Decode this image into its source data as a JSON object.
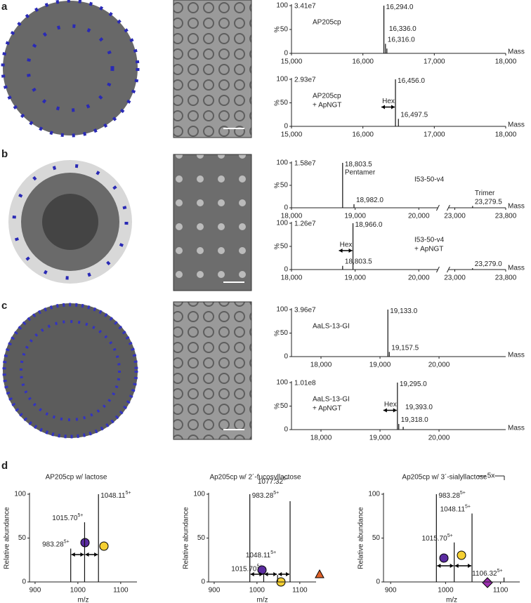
{
  "panel_labels": [
    "a",
    "b",
    "c",
    "d"
  ],
  "chart_data": [
    {
      "type": "spectrum",
      "intensity": "3.41e7",
      "label_lines": [
        "AP205cp"
      ],
      "x": [
        16294.0,
        16316.0,
        16336.0
      ],
      "x_labels": [
        "16,294.0",
        "16,316.0",
        "16,336.0"
      ],
      "values": [
        100,
        20,
        10
      ],
      "xlim": [
        15000,
        18000
      ],
      "xticks": [
        {
          "value": 15000,
          "label": "15,000"
        },
        {
          "value": 16000,
          "label": "16,000"
        },
        {
          "value": 17000,
          "label": "17,000"
        },
        {
          "value": 18000,
          "label": "18,000"
        }
      ],
      "ylim": [
        0,
        100
      ],
      "yticks": [
        0,
        50,
        100
      ],
      "ylabel": "%",
      "xlabel": "Mass",
      "color": "#111111"
    },
    {
      "type": "spectrum",
      "intensity": "2.93e7",
      "label_lines": [
        "AP205cp",
        "+ ApNGT"
      ],
      "annotation": "Hex",
      "x": [
        16456.0,
        16497.5
      ],
      "x_labels": [
        "16,456.0",
        "16,497.5"
      ],
      "values": [
        100,
        16
      ],
      "xlim": [
        15000,
        18000
      ],
      "xticks": [
        {
          "value": 15000,
          "label": "15,000"
        },
        {
          "value": 16000,
          "label": "16,000"
        },
        {
          "value": 17000,
          "label": "17,000"
        },
        {
          "value": 18000,
          "label": "18,000"
        }
      ],
      "ylim": [
        0,
        100
      ],
      "yticks": [
        0,
        50,
        100
      ],
      "ylabel": "%",
      "xlabel": "Mass",
      "color": "#111111"
    },
    {
      "type": "spectrum",
      "intensity": "1.58e7",
      "label_lines": [
        "I53-50-v4"
      ],
      "x": [
        18803.5,
        18982.0,
        23279.5
      ],
      "x_labels": [
        "18,803.5",
        "18,982.0",
        "23,279.5"
      ],
      "peak_names": [
        "Pentamer",
        null,
        "Trimer"
      ],
      "values": [
        100,
        8,
        4
      ],
      "xlim": [
        18000,
        23800
      ],
      "xbreak": [
        20300,
        22900
      ],
      "xticks": [
        {
          "value": 18000,
          "label": "18,000"
        },
        {
          "value": 19000,
          "label": "19,000"
        },
        {
          "value": 20000,
          "label": "20,000"
        },
        {
          "value": 23000,
          "label": "23,000"
        },
        {
          "value": 23800,
          "label": "23,800"
        }
      ],
      "ylim": [
        0,
        100
      ],
      "yticks": [
        0,
        50,
        100
      ],
      "ylabel": "%",
      "xlabel": "Mass",
      "color": "#111111"
    },
    {
      "type": "spectrum",
      "intensity": "1.26e7",
      "label_lines": [
        "I53-50-v4",
        "+ ApNGT"
      ],
      "annotation": "Hex",
      "x": [
        18803.5,
        18966.0,
        23279.0
      ],
      "x_labels": [
        "18,803.5",
        "18,966.0",
        "23,279.0"
      ],
      "values": [
        8,
        100,
        3
      ],
      "xlim": [
        18000,
        23800
      ],
      "xbreak": [
        20300,
        22900
      ],
      "xticks": [
        {
          "value": 18000,
          "label": "18,000"
        },
        {
          "value": 19000,
          "label": "19,000"
        },
        {
          "value": 20000,
          "label": "20,000"
        },
        {
          "value": 23000,
          "label": "23,000"
        },
        {
          "value": 23800,
          "label": "23,800"
        }
      ],
      "ylim": [
        0,
        100
      ],
      "yticks": [
        0,
        50,
        100
      ],
      "ylabel": "%",
      "xlabel": "Mass",
      "color": "#111111"
    },
    {
      "type": "spectrum",
      "intensity": "3.96e7",
      "label_lines": [
        "AaLS-13-GI"
      ],
      "x": [
        19133.0,
        19157.5
      ],
      "x_labels": [
        "19,133.0",
        "19,157.5"
      ],
      "values": [
        100,
        10
      ],
      "xlim": [
        17500,
        21130
      ],
      "xticks": [
        {
          "value": 18000,
          "label": "18,000"
        },
        {
          "value": 19000,
          "label": "19,000"
        },
        {
          "value": 20000,
          "label": "20,000"
        }
      ],
      "ylim": [
        0,
        100
      ],
      "yticks": [
        0,
        50,
        100
      ],
      "ylabel": "%",
      "xlabel": "Mass",
      "color": "#111111"
    },
    {
      "type": "spectrum",
      "intensity": "1.01e8",
      "label_lines": [
        "AaLS-13-GI",
        "+ ApNGT"
      ],
      "annotation": "Hex",
      "x": [
        19295.0,
        19318.0,
        19393.0
      ],
      "x_labels": [
        "19,295.0",
        "19,318.0",
        "19,393.0"
      ],
      "values": [
        100,
        12,
        6
      ],
      "xlim": [
        17500,
        21130
      ],
      "xticks": [
        {
          "value": 18000,
          "label": "18,000"
        },
        {
          "value": 19000,
          "label": "19,000"
        },
        {
          "value": 20000,
          "label": "20,000"
        }
      ],
      "ylim": [
        0,
        100
      ],
      "yticks": [
        0,
        50,
        100
      ],
      "ylabel": "%",
      "xlabel": "Mass",
      "color": "#111111"
    },
    {
      "type": "spectrum",
      "title": "AP205cp w/ lactose",
      "x": [
        983.28,
        1015.7,
        1048.11
      ],
      "x_labels": [
        "983.28",
        "1015.70",
        "1048.11"
      ],
      "charges": [
        "5+",
        "5+",
        "5+"
      ],
      "values": [
        38,
        68,
        100
      ],
      "xlim": [
        887,
        1138
      ],
      "xticks": [
        900,
        1000,
        1100
      ],
      "ylim": [
        0,
        100
      ],
      "yticks": [
        0,
        50,
        100
      ],
      "ylabel": "Relative abundance",
      "xlabel": "m/z",
      "color": "#111111"
    },
    {
      "type": "spectrum",
      "title": "Ap205cp w/ 2´-fucosyllactose",
      "x": [
        983.28,
        1015.7,
        1048.11,
        1077.32
      ],
      "x_labels": [
        "983.28",
        "1015.70",
        "1048.11",
        "1077.32"
      ],
      "charges": [
        "5+",
        "5+",
        "5+",
        "5+"
      ],
      "values": [
        100,
        10,
        8,
        92
      ],
      "xlim": [
        887,
        1138
      ],
      "xticks": [
        900,
        1000,
        1100
      ],
      "ylim": [
        0,
        100
      ],
      "yticks": [
        0,
        50,
        100
      ],
      "ylabel": "Relative abundance",
      "xlabel": "m/z",
      "color": "#111111"
    },
    {
      "type": "spectrum",
      "title": "Ap205cp w/ 3´-sialyllactose",
      "annotation": "5x",
      "x": [
        983.28,
        1015.7,
        1048.11,
        1106.32
      ],
      "x_labels": [
        "983.28",
        "1015.70",
        "1048.11",
        "1106.32"
      ],
      "charges": [
        "5+",
        "5+",
        "5+",
        "5+"
      ],
      "values": [
        100,
        45,
        78,
        5
      ],
      "xlim": [
        887,
        1135
      ],
      "xticks": [
        900,
        1000,
        1100
      ],
      "ylim": [
        0,
        100
      ],
      "yticks": [
        0,
        50,
        100
      ],
      "ylabel": "Relative abundance",
      "xlabel": "m/z",
      "color": "#111111"
    }
  ]
}
